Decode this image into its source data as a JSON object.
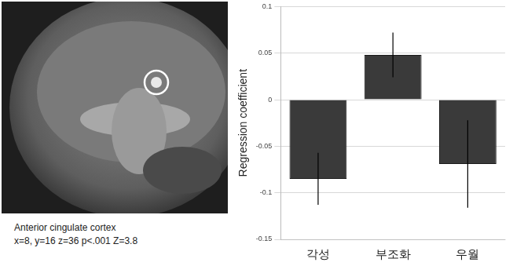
{
  "chart_data": {
    "type": "bar",
    "y_label": "Regression coefficient",
    "categories": [
      "각성",
      "부조화",
      "우월"
    ],
    "values": [
      -0.085,
      0.048,
      -0.069
    ],
    "errors": [
      0.028,
      0.024,
      0.047
    ],
    "color": "#3a3a3a",
    "ylim": [
      -0.15,
      0.1
    ],
    "yticks": [
      -0.15,
      -0.1,
      -0.05,
      0,
      0.05,
      0.1
    ],
    "grid": true,
    "annotations": [
      "Anterior cingulate cortex",
      "x=8, y=16 z=36 p<.001 Z=3.8"
    ]
  }
}
